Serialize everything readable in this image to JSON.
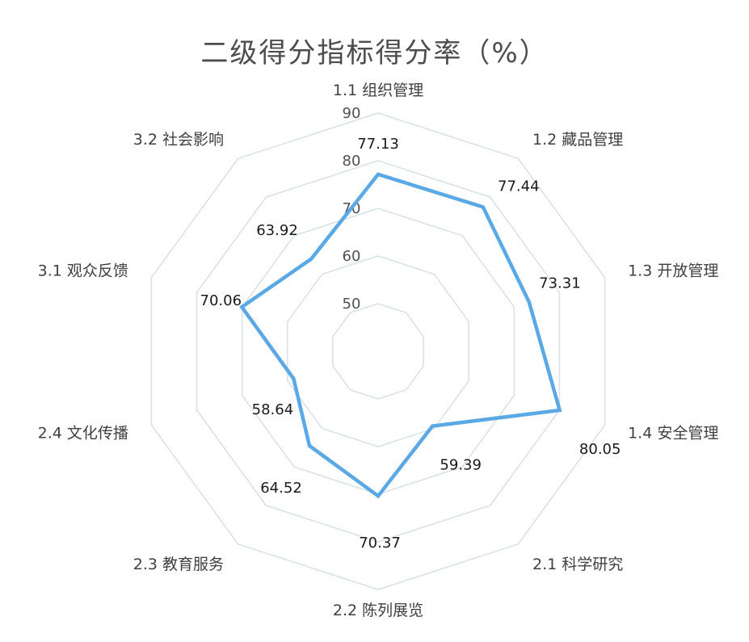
{
  "chart_data": {
    "type": "radar",
    "title": "二级得分指标得分率（%）",
    "categories": [
      "1.1 组织管理",
      "1.2 藏品管理",
      "1.3 开放管理",
      "1.4 安全管理",
      "2.1 科学研究",
      "2.2 陈列展览",
      "2.3 教育服务",
      "2.4 文化传播",
      "3.1 观众反馈",
      "3.2 社会影响"
    ],
    "values": [
      77.13,
      77.44,
      73.31,
      80.05,
      59.39,
      70.37,
      64.52,
      58.64,
      70.06,
      63.92
    ],
    "value_labels": [
      "77.13",
      "77.44",
      "73.31",
      "80.05",
      "59.39",
      "70.37",
      "64.52",
      "58.64",
      "70.06",
      "63.92"
    ],
    "rlim": [
      40,
      90
    ],
    "rticks": [
      50,
      60,
      70,
      80,
      90
    ],
    "grid": true,
    "legend": "none",
    "line_color": "#5aa9e6",
    "grid_color": "#d9e3e6"
  }
}
